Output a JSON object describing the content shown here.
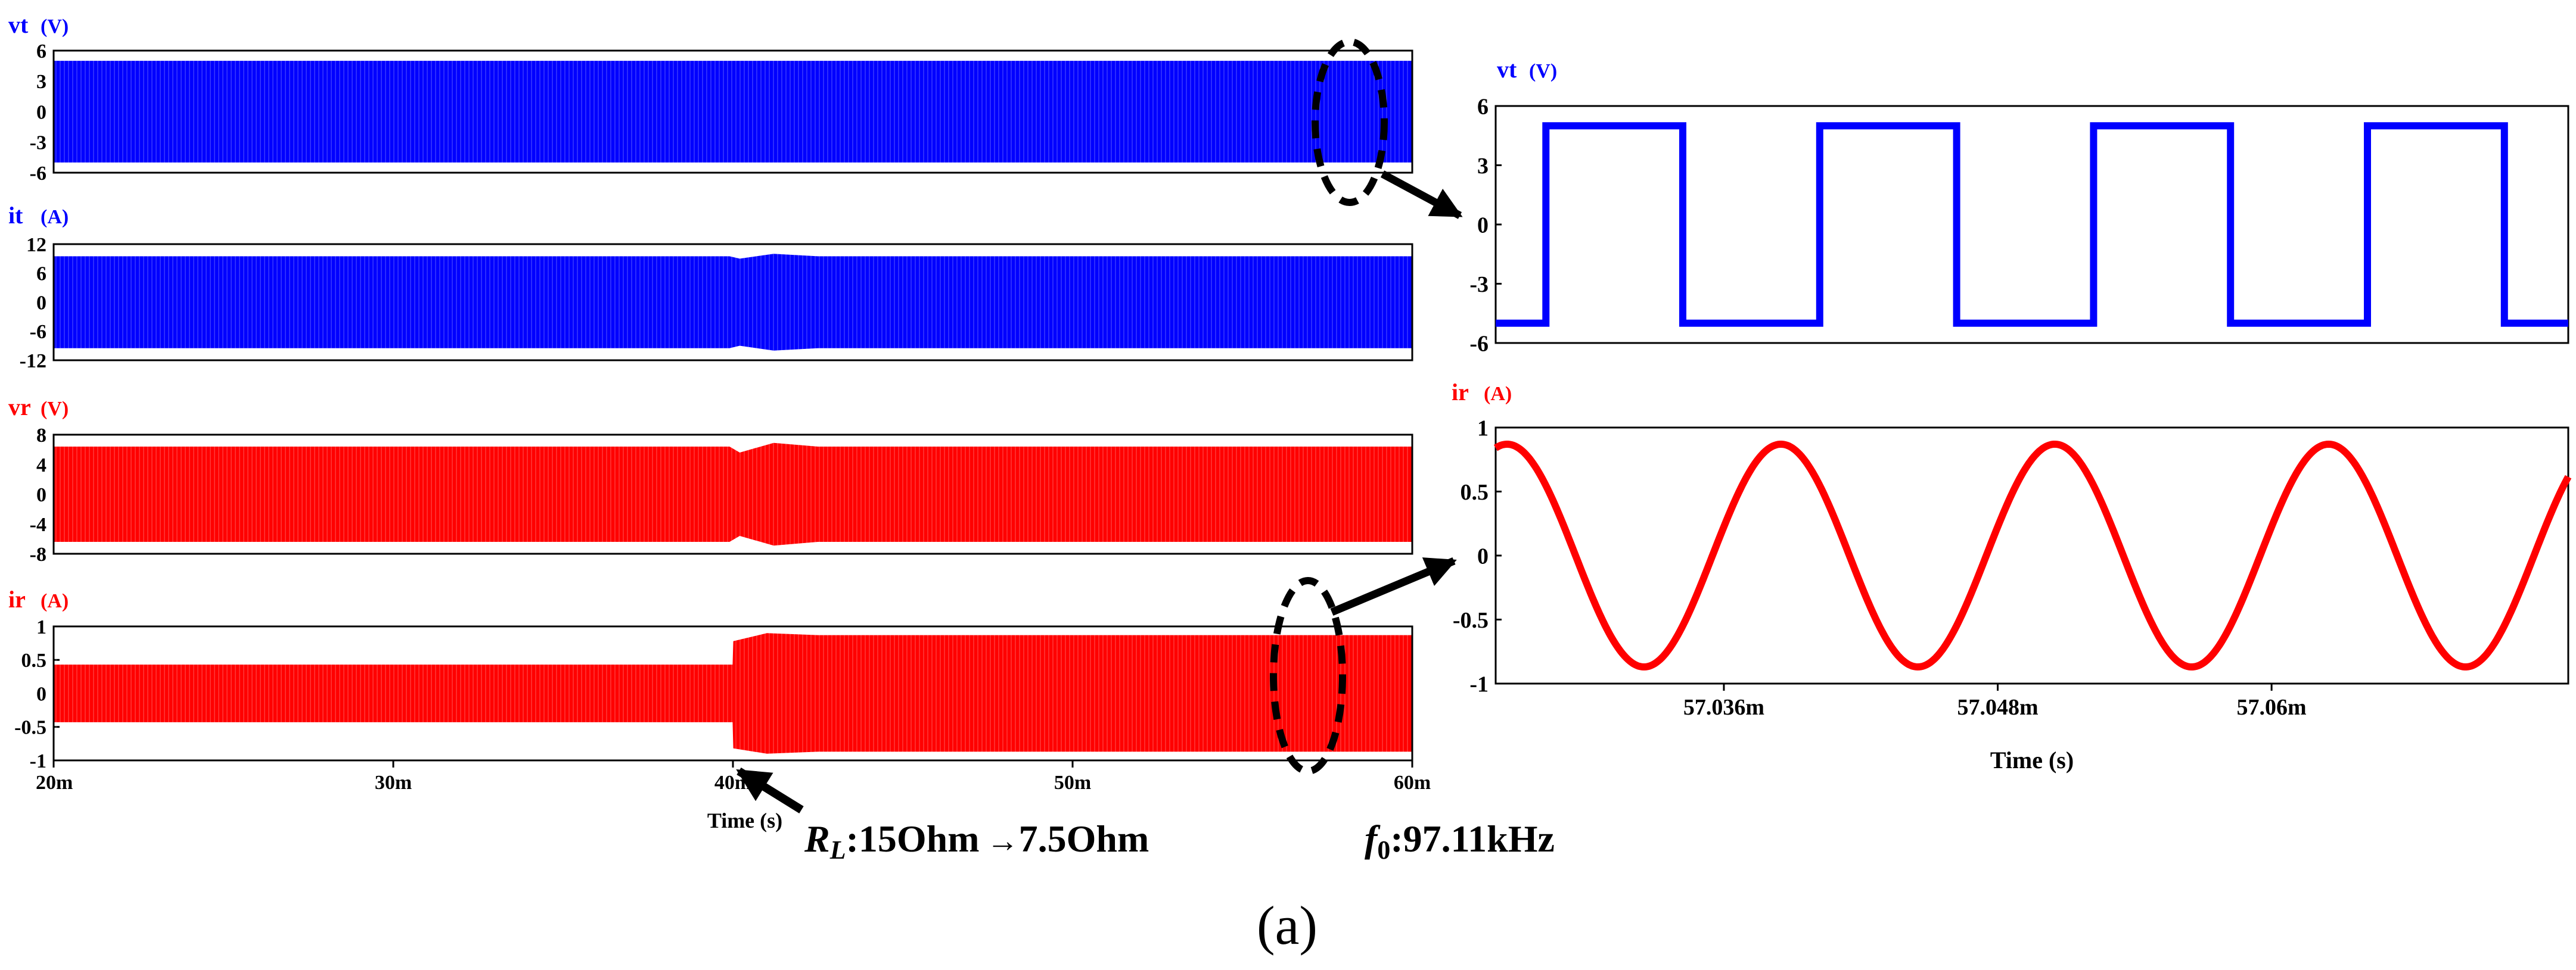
{
  "caption": "(a)",
  "annotations": {
    "rl_prefix": "R",
    "rl_sub": "L",
    "rl_rest": ":15Ohm",
    "rl_arrow": "→",
    "rl_end": "7.5Ohm",
    "f0_prefix": "f",
    "f0_sub": "0",
    "f0_rest": ":97.11kHz"
  },
  "colors": {
    "blue": "#0000ff",
    "red": "#ff0000"
  },
  "chart_data": [
    {
      "id": "vt_long",
      "type": "line",
      "title": "vt",
      "unit": "(V)",
      "color": "#0000ff",
      "xlim": [
        0.02,
        0.06
      ],
      "ylim": [
        -6,
        6
      ],
      "yticks": [
        6,
        3,
        0,
        -3,
        -6
      ],
      "ytick_labels": [
        "6",
        "3",
        "0",
        "-3",
        "-6"
      ],
      "envelope": [
        {
          "x": 0.02,
          "upper": 5,
          "lower": -5
        },
        {
          "x": 0.06,
          "upper": 5,
          "lower": -5
        }
      ]
    },
    {
      "id": "it_long",
      "type": "line",
      "title": "it",
      "unit": "(A)",
      "color": "#0000ff",
      "xlim": [
        0.02,
        0.06
      ],
      "ylim": [
        -12,
        12
      ],
      "yticks": [
        12,
        6,
        0,
        -6,
        -12
      ],
      "ytick_labels": [
        "12",
        "6",
        "0",
        "-6",
        "-12"
      ],
      "envelope": [
        {
          "x": 0.02,
          "upper": 9.5,
          "lower": -9.5
        },
        {
          "x": 0.0399,
          "upper": 9.5,
          "lower": -9.5
        },
        {
          "x": 0.0402,
          "upper": 9.0,
          "lower": -9.0
        },
        {
          "x": 0.0412,
          "upper": 10.0,
          "lower": -10.0
        },
        {
          "x": 0.0425,
          "upper": 9.5,
          "lower": -9.5
        },
        {
          "x": 0.06,
          "upper": 9.5,
          "lower": -9.5
        }
      ]
    },
    {
      "id": "vr_long",
      "type": "line",
      "title": "vr",
      "unit": "(V)",
      "color": "#ff0000",
      "xlim": [
        0.02,
        0.06
      ],
      "ylim": [
        -8,
        8
      ],
      "yticks": [
        8,
        4,
        0,
        -4,
        -8
      ],
      "ytick_labels": [
        "8",
        "4",
        "0",
        "-4",
        "-8"
      ],
      "envelope": [
        {
          "x": 0.02,
          "upper": 6.4,
          "lower": -6.4
        },
        {
          "x": 0.0399,
          "upper": 6.4,
          "lower": -6.4
        },
        {
          "x": 0.0402,
          "upper": 5.6,
          "lower": -5.6
        },
        {
          "x": 0.0412,
          "upper": 6.9,
          "lower": -6.9
        },
        {
          "x": 0.0425,
          "upper": 6.4,
          "lower": -6.4
        },
        {
          "x": 0.06,
          "upper": 6.4,
          "lower": -6.4
        }
      ]
    },
    {
      "id": "ir_long",
      "type": "line",
      "title": "ir",
      "unit": "(A)",
      "color": "#ff0000",
      "xlim": [
        0.02,
        0.06
      ],
      "ylim": [
        -1,
        1
      ],
      "yticks": [
        1,
        0.5,
        0,
        -0.5,
        -1
      ],
      "ytick_labels": [
        "1",
        "0.5",
        "0",
        "-0.5",
        "-1"
      ],
      "xticks": [
        0.02,
        0.03,
        0.04,
        0.05,
        0.06
      ],
      "xtick_labels": [
        "20m",
        "30m",
        "40m",
        "50m",
        "60m"
      ],
      "xlabel": "Time (s)",
      "envelope": [
        {
          "x": 0.02,
          "upper": 0.43,
          "lower": -0.43
        },
        {
          "x": 0.03999,
          "upper": 0.43,
          "lower": -0.43
        },
        {
          "x": 0.04001,
          "upper": 0.78,
          "lower": -0.82
        },
        {
          "x": 0.041,
          "upper": 0.9,
          "lower": -0.9
        },
        {
          "x": 0.0425,
          "upper": 0.87,
          "lower": -0.87
        },
        {
          "x": 0.06,
          "upper": 0.87,
          "lower": -0.87
        }
      ]
    },
    {
      "id": "vt_zoom",
      "type": "line",
      "title": "vt",
      "unit": "(V)",
      "color": "#0000ff",
      "xlim": [
        0.057026,
        0.057073
      ],
      "ylim": [
        -6,
        6
      ],
      "yticks": [
        6,
        3,
        0,
        -3,
        -6
      ],
      "ytick_labels": [
        "6",
        "3",
        "0",
        "-3",
        "-6"
      ],
      "x": [
        0.057026,
        0.0570282,
        0.0570282,
        0.0570342,
        0.0570342,
        0.0570402,
        0.0570402,
        0.0570462,
        0.0570462,
        0.0570522,
        0.0570522,
        0.0570582,
        0.0570582,
        0.0570642,
        0.0570642,
        0.0570702,
        0.0570702,
        0.057073
      ],
      "y": [
        -5,
        -5,
        5,
        5,
        -5,
        -5,
        5,
        5,
        -5,
        -5,
        5,
        5,
        -5,
        -5,
        5,
        5,
        -5,
        -5
      ]
    },
    {
      "id": "ir_zoom",
      "type": "line",
      "title": "ir",
      "unit": "(A)",
      "color": "#ff0000",
      "xlim": [
        0.057026,
        0.057073
      ],
      "ylim": [
        -1,
        1
      ],
      "yticks": [
        1,
        0.5,
        0,
        -0.5,
        -1
      ],
      "ytick_labels": [
        "1",
        "0.5",
        "0",
        "-0.5",
        "-1"
      ],
      "xticks": [
        0.057036,
        0.057048,
        0.05706
      ],
      "xtick_labels": [
        "57.036m",
        "57.048m",
        "57.06m"
      ],
      "xlabel": "Time (s)",
      "function": {
        "amplitude": 0.87,
        "period": 1.2e-05,
        "peak_x": 0.0570385
      }
    }
  ]
}
